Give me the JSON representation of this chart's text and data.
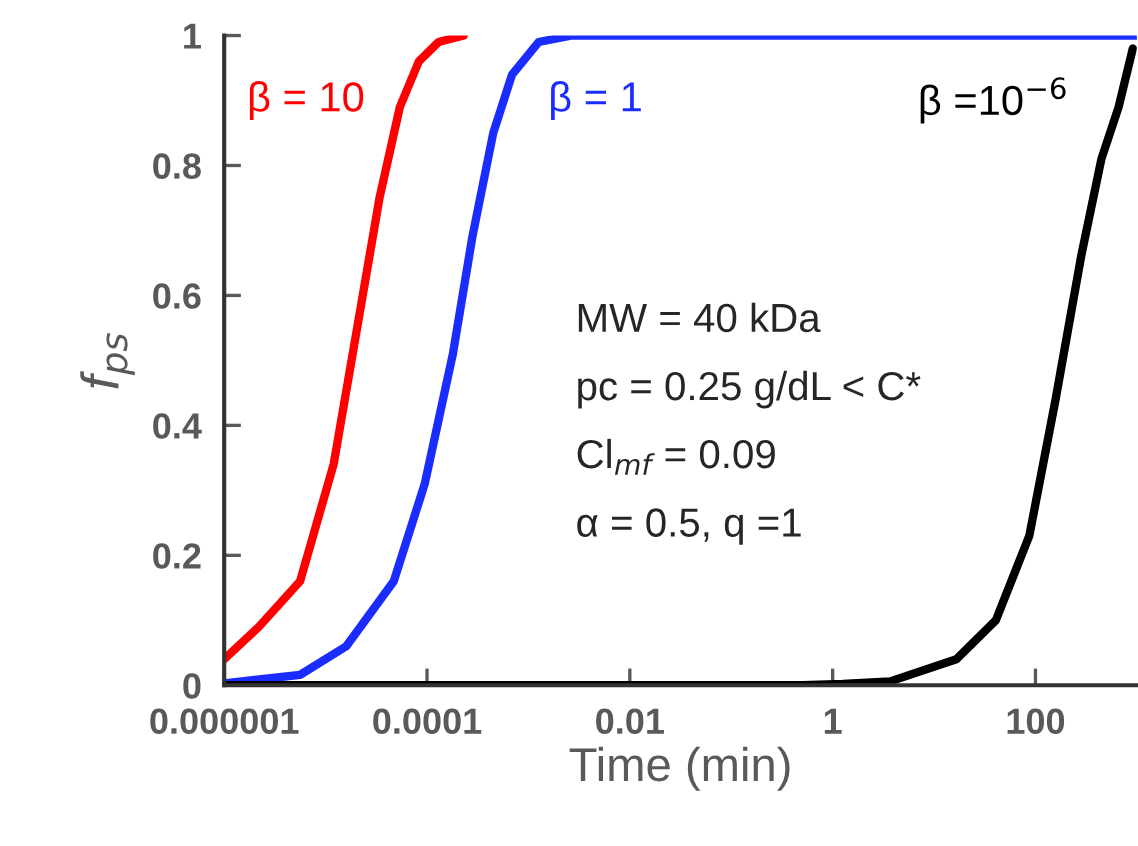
{
  "chart_data": {
    "type": "line",
    "xlabel": "Time (min)",
    "ylabel": "f$_{ps}$",
    "log": "x",
    "grid": false,
    "legend": false,
    "marker": "none",
    "line_style": "solid",
    "xlim": [
      1e-06,
      1000
    ],
    "xticks": [
      {
        "value": 1e-06,
        "label": "0.000001"
      },
      {
        "value": 0.0001,
        "label": "0.0001"
      },
      {
        "value": 0.01,
        "label": "0.01"
      },
      1,
      100
    ],
    "ylim": [
      0,
      1
    ],
    "yticks": [
      0,
      0.2,
      0.4,
      0.6,
      0.8,
      1
    ],
    "series": [
      {
        "name": "β = 10",
        "color": "#ff0000",
        "x": [
          1e-06,
          2.2e-06,
          5.6e-06,
          1.2e-05,
          2.1e-05,
          3.4e-05,
          5.4e-05,
          8.3e-05,
          0.00013,
          0.00023
        ],
        "values": [
          0.04,
          0.09,
          0.16,
          0.34,
          0.56,
          0.75,
          0.89,
          0.96,
          0.99,
          1.0
        ]
      },
      {
        "name": "β = 1",
        "color": "#1a2cff",
        "x": [
          1e-06,
          5.6e-06,
          1.6e-05,
          4.7e-05,
          9.5e-05,
          0.00018,
          0.00028,
          0.00045,
          0.00069,
          0.00126,
          0.0027,
          1000
        ],
        "values": [
          0.003,
          0.016,
          0.06,
          0.16,
          0.31,
          0.51,
          0.69,
          0.85,
          0.94,
          0.99,
          1.0,
          1.0
        ]
      },
      {
        "name": "β =10$^{−6}$",
        "color": "#000000",
        "x": [
          1e-06,
          0.5,
          1.26,
          3.7,
          16.6,
          40.7,
          87,
          158,
          282,
          447,
          661,
          912
        ],
        "values": [
          0.0,
          0.0,
          0.002,
          0.006,
          0.04,
          0.1,
          0.23,
          0.44,
          0.66,
          0.81,
          0.89,
          0.98
        ]
      }
    ],
    "annotations": [
      "MW = 40 kDa",
      "pc = 0.25 g/dL < C*",
      "Cl$_{mf}$ = 0.09",
      "α = 0.5, q =1"
    ]
  }
}
